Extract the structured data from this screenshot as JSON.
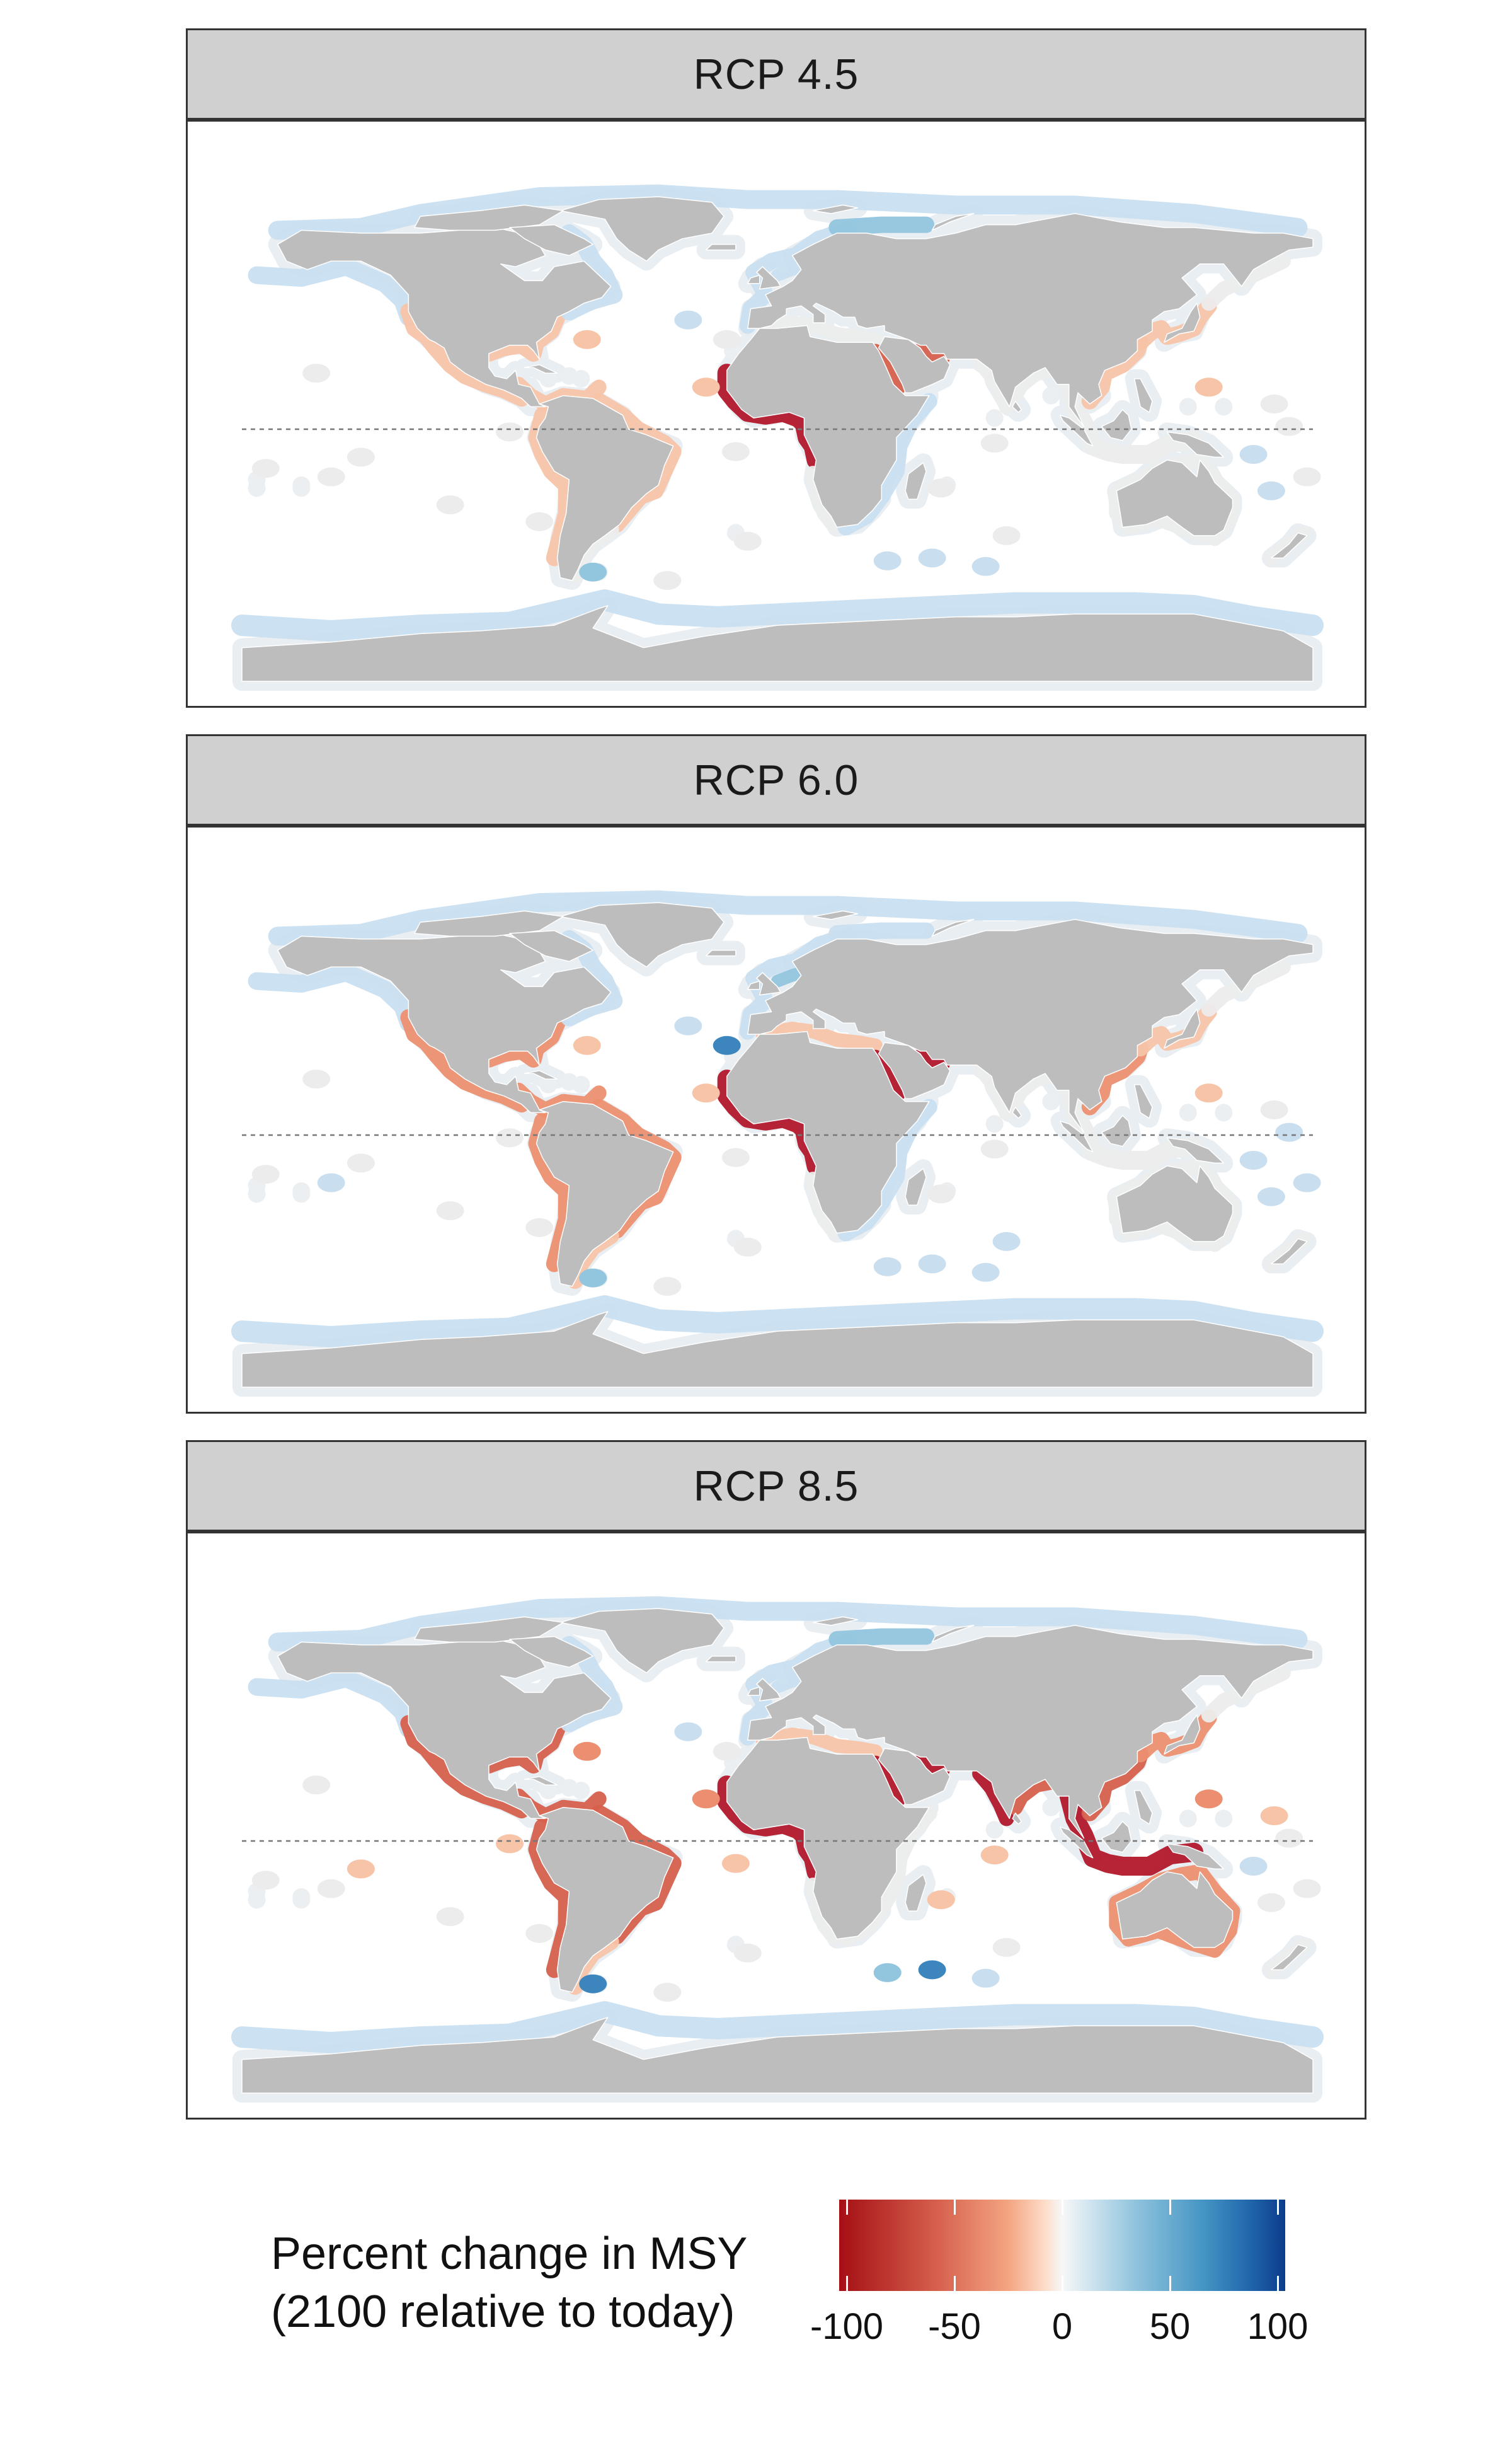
{
  "panels": [
    {
      "title": "RCP 4.5",
      "scenario": "rcp45"
    },
    {
      "title": "RCP 6.0",
      "scenario": "rcp60"
    },
    {
      "title": "RCP 8.5",
      "scenario": "rcp85"
    }
  ],
  "legend": {
    "title_line1": "Percent change in MSY",
    "title_line2": "(2100 relative to today)",
    "ticks": [
      "-100",
      "-50",
      "0",
      "50",
      "100"
    ],
    "tick_values": [
      -100,
      -50,
      0,
      50,
      100
    ],
    "range": [
      -100,
      100
    ],
    "colors": [
      "#a50f15",
      "#d6604d",
      "#f4a582",
      "#f7f7f7",
      "#92c5de",
      "#4393c3",
      "#0b3c8c"
    ]
  },
  "colors": {
    "land": "#bdbdbd",
    "ocean": "#ffffff",
    "strip": "#d0d0d0",
    "equator": "#777777"
  }
}
